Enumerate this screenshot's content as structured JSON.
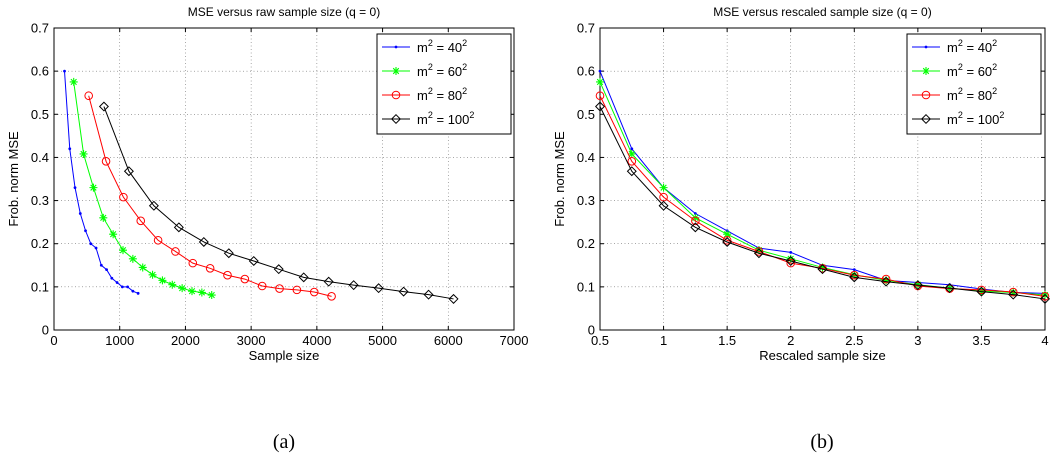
{
  "chart_data": [
    {
      "type": "line",
      "title": "MSE versus raw  sample size (q = 0)",
      "xlabel": "Sample size",
      "ylabel": "Frob. norm MSE",
      "xlim": [
        0,
        7000
      ],
      "ylim": [
        0,
        0.7
      ],
      "xticks": [
        0,
        1000,
        2000,
        3000,
        4000,
        5000,
        6000,
        7000
      ],
      "yticks": [
        0,
        0.1,
        0.2,
        0.3,
        0.4,
        0.5,
        0.6,
        0.7
      ],
      "xtick_labels": [
        "0",
        "1000",
        "2000",
        "3000",
        "4000",
        "5000",
        "6000",
        "7000"
      ],
      "ytick_labels": [
        "0",
        "0.1",
        "0.2",
        "0.3",
        "0.4",
        "0.5",
        "0.6",
        "0.7"
      ],
      "grid": true,
      "legend_position": "top-right",
      "caption": "(a)",
      "series": [
        {
          "name": "m^2 = 40^2",
          "base": "m",
          "exp1": "2",
          "eq": " = ",
          "num": "40",
          "exp2": "2",
          "color": "#0000ff",
          "marker": "dot",
          "x": [
            160,
            240,
            320,
            400,
            480,
            560,
            640,
            720,
            800,
            880,
            960,
            1040,
            1120,
            1200,
            1280
          ],
          "y": [
            0.6,
            0.42,
            0.33,
            0.27,
            0.23,
            0.2,
            0.19,
            0.15,
            0.14,
            0.12,
            0.11,
            0.1,
            0.1,
            0.09,
            0.085
          ]
        },
        {
          "name": "m^2 = 60^2",
          "base": "m",
          "exp1": "2",
          "eq": " = ",
          "num": "60",
          "exp2": "2",
          "color": "#00ff00",
          "marker": "star",
          "x": [
            300,
            450,
            600,
            750,
            900,
            1050,
            1200,
            1350,
            1500,
            1650,
            1800,
            1950,
            2100,
            2250,
            2400
          ],
          "y": [
            0.575,
            0.408,
            0.33,
            0.26,
            0.222,
            0.185,
            0.165,
            0.145,
            0.128,
            0.115,
            0.105,
            0.097,
            0.09,
            0.087,
            0.081
          ]
        },
        {
          "name": "m^2 = 80^2",
          "base": "m",
          "exp1": "2",
          "eq": " = ",
          "num": "80",
          "exp2": "2",
          "color": "#ff0000",
          "marker": "circle",
          "x": [
            528,
            792,
            1056,
            1320,
            1584,
            1848,
            2112,
            2376,
            2640,
            2904,
            3168,
            3432,
            3696,
            3960,
            4224
          ],
          "y": [
            0.543,
            0.391,
            0.308,
            0.253,
            0.208,
            0.182,
            0.155,
            0.143,
            0.127,
            0.118,
            0.102,
            0.096,
            0.093,
            0.088,
            0.078
          ]
        },
        {
          "name": "m^2 = 100^2",
          "base": "m",
          "exp1": "2",
          "eq": " = ",
          "num": "100",
          "exp2": "2",
          "color": "#000000",
          "marker": "diamond",
          "x": [
            760,
            1140,
            1520,
            1900,
            2280,
            2660,
            3040,
            3420,
            3800,
            4180,
            4560,
            4940,
            5320,
            5700,
            6080
          ],
          "y": [
            0.518,
            0.368,
            0.288,
            0.238,
            0.204,
            0.178,
            0.16,
            0.141,
            0.122,
            0.112,
            0.104,
            0.097,
            0.089,
            0.082,
            0.072
          ]
        }
      ]
    },
    {
      "type": "line",
      "title": "MSE versus rescaled sample size (q = 0)",
      "xlabel": "Rescaled sample size",
      "ylabel": "Frob. norm MSE",
      "xlim": [
        0.5,
        4
      ],
      "ylim": [
        0,
        0.7
      ],
      "xticks": [
        0.5,
        1,
        1.5,
        2,
        2.5,
        3,
        3.5,
        4
      ],
      "yticks": [
        0,
        0.1,
        0.2,
        0.3,
        0.4,
        0.5,
        0.6,
        0.7
      ],
      "xtick_labels": [
        "0.5",
        "1",
        "1.5",
        "2",
        "2.5",
        "3",
        "3.5",
        "4"
      ],
      "ytick_labels": [
        "0",
        "0.1",
        "0.2",
        "0.3",
        "0.4",
        "0.5",
        "0.6",
        "0.7"
      ],
      "grid": true,
      "legend_position": "top-right",
      "caption": "(b)",
      "series": [
        {
          "name": "m^2 = 40^2",
          "base": "m",
          "exp1": "2",
          "eq": " = ",
          "num": "40",
          "exp2": "2",
          "color": "#0000ff",
          "marker": "dot",
          "x": [
            0.5,
            0.75,
            1,
            1.25,
            1.5,
            1.75,
            2,
            2.25,
            2.5,
            2.75,
            3,
            3.25,
            3.5,
            3.75,
            4
          ],
          "y": [
            0.6,
            0.42,
            0.33,
            0.27,
            0.23,
            0.19,
            0.18,
            0.15,
            0.14,
            0.115,
            0.11,
            0.105,
            0.095,
            0.087,
            0.085
          ]
        },
        {
          "name": "m^2 = 60^2",
          "base": "m",
          "exp1": "2",
          "eq": " = ",
          "num": "60",
          "exp2": "2",
          "color": "#00ff00",
          "marker": "star",
          "x": [
            0.5,
            0.75,
            1,
            1.25,
            1.5,
            1.75,
            2,
            2.25,
            2.5,
            2.75,
            3,
            3.25,
            3.5,
            3.75,
            4
          ],
          "y": [
            0.575,
            0.408,
            0.33,
            0.26,
            0.222,
            0.185,
            0.165,
            0.145,
            0.128,
            0.115,
            0.105,
            0.097,
            0.09,
            0.087,
            0.081
          ]
        },
        {
          "name": "m^2 = 80^2",
          "base": "m",
          "exp1": "2",
          "eq": " = ",
          "num": "80",
          "exp2": "2",
          "color": "#ff0000",
          "marker": "circle",
          "x": [
            0.5,
            0.75,
            1,
            1.25,
            1.5,
            1.75,
            2,
            2.25,
            2.5,
            2.75,
            3,
            3.25,
            3.5,
            3.75,
            4
          ],
          "y": [
            0.543,
            0.391,
            0.308,
            0.253,
            0.208,
            0.182,
            0.155,
            0.143,
            0.127,
            0.118,
            0.102,
            0.096,
            0.093,
            0.088,
            0.078
          ]
        },
        {
          "name": "m^2 = 100^2",
          "base": "m",
          "exp1": "2",
          "eq": " = ",
          "num": "100",
          "exp2": "2",
          "color": "#000000",
          "marker": "diamond",
          "x": [
            0.5,
            0.75,
            1,
            1.25,
            1.5,
            1.75,
            2,
            2.25,
            2.5,
            2.75,
            3,
            3.25,
            3.5,
            3.75,
            4
          ],
          "y": [
            0.518,
            0.368,
            0.288,
            0.238,
            0.204,
            0.178,
            0.16,
            0.141,
            0.122,
            0.112,
            0.104,
            0.097,
            0.089,
            0.082,
            0.072
          ]
        }
      ]
    }
  ]
}
